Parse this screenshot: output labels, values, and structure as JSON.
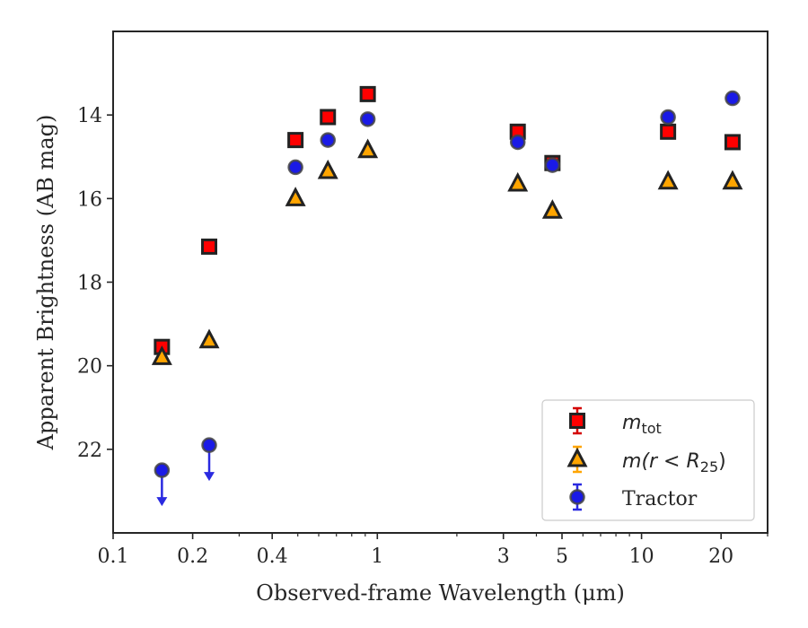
{
  "chart_data": {
    "type": "scatter",
    "xscale": "log",
    "yaxis_inverted": true,
    "xlim": [
      0.1,
      30
    ],
    "ylim": [
      24,
      12
    ],
    "xlabel": "Observed-frame Wavelength (μm)",
    "ylabel": "Apparent Brightness (AB mag)",
    "xticks": [
      {
        "value": 0.1,
        "label": "0.1"
      },
      {
        "value": 0.2,
        "label": "0.2"
      },
      {
        "value": 0.4,
        "label": "0.4"
      },
      {
        "value": 1,
        "label": "1"
      },
      {
        "value": 3,
        "label": "3"
      },
      {
        "value": 5,
        "label": "5"
      },
      {
        "value": 10,
        "label": "10"
      },
      {
        "value": 20,
        "label": "20"
      }
    ],
    "yticks": [
      {
        "value": 14,
        "label": "14"
      },
      {
        "value": 16,
        "label": "16"
      },
      {
        "value": 18,
        "label": "18"
      },
      {
        "value": 20,
        "label": "20"
      },
      {
        "value": 22,
        "label": "22"
      }
    ],
    "legend_position": "lower right",
    "series": [
      {
        "key": "mtot",
        "name": "m_tot",
        "marker": "square",
        "color": "#ff0000",
        "edge": "#222222",
        "errcolor": "#d40000",
        "points": [
          {
            "x": 0.153,
            "y": 19.55
          },
          {
            "x": 0.231,
            "y": 17.15
          },
          {
            "x": 0.49,
            "y": 14.6
          },
          {
            "x": 0.65,
            "y": 14.05
          },
          {
            "x": 0.92,
            "y": 13.5
          },
          {
            "x": 3.4,
            "y": 14.4
          },
          {
            "x": 4.6,
            "y": 15.15
          },
          {
            "x": 12.6,
            "y": 14.4
          },
          {
            "x": 22.1,
            "y": 14.65
          }
        ]
      },
      {
        "key": "mr25",
        "name": "m(r < R25)",
        "marker": "triangle",
        "color": "#ffa500",
        "edge": "#222222",
        "errcolor": "#ffa500",
        "points": [
          {
            "x": 0.153,
            "y": 19.8
          },
          {
            "x": 0.231,
            "y": 19.4
          },
          {
            "x": 0.49,
            "y": 16.0
          },
          {
            "x": 0.65,
            "y": 15.35
          },
          {
            "x": 0.92,
            "y": 14.85
          },
          {
            "x": 3.4,
            "y": 15.65
          },
          {
            "x": 4.6,
            "y": 16.3
          },
          {
            "x": 12.6,
            "y": 15.6
          },
          {
            "x": 22.1,
            "y": 15.6
          }
        ]
      },
      {
        "key": "tractor",
        "name": "Tractor",
        "marker": "circle",
        "color": "#1a1ae6",
        "edge": "#444444",
        "errcolor": "#2a2ae0",
        "points": [
          {
            "x": 0.153,
            "y": 22.5,
            "upper_limit": true
          },
          {
            "x": 0.231,
            "y": 21.9,
            "upper_limit": true
          },
          {
            "x": 0.49,
            "y": 15.25
          },
          {
            "x": 0.65,
            "y": 14.6
          },
          {
            "x": 0.92,
            "y": 14.1
          },
          {
            "x": 3.4,
            "y": 14.65
          },
          {
            "x": 4.6,
            "y": 15.2
          },
          {
            "x": 12.6,
            "y": 14.05
          },
          {
            "x": 22.1,
            "y": 13.6
          }
        ]
      }
    ]
  },
  "legend": {
    "mtot_base": "m",
    "mtot_sub": "tot",
    "mr25_pre": "m",
    "mr25_mid": "(r < R",
    "mr25_sub": "25",
    "mr25_post": ")",
    "tractor": "Tractor"
  }
}
